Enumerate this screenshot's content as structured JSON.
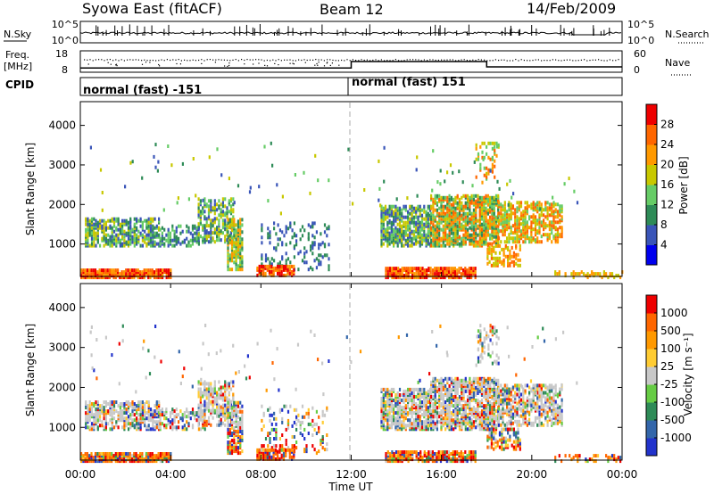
{
  "header": {
    "station": "Syowa East (fitACF)",
    "beam": "Beam 12",
    "date": "14/Feb/2009"
  },
  "nsky_panel": {
    "left_label": "N.Sky",
    "right_label": "N.Search",
    "left_ticks": [
      "10^5",
      "10^0"
    ],
    "right_ticks": [
      "10^5",
      "10^0"
    ]
  },
  "freq_panel": {
    "left_label_line1": "Freq.",
    "left_label_line2": "[MHz]",
    "right_label": "Nave",
    "left_ticks": [
      "18",
      "8"
    ],
    "right_ticks": [
      "60",
      "0"
    ]
  },
  "cpid": {
    "label": "CPID",
    "segments": [
      {
        "label": "normal (fast) -151",
        "start_hour": 0,
        "end_hour": 12
      },
      {
        "label": "normal (fast) 151",
        "start_hour": 12,
        "end_hour": 24
      }
    ]
  },
  "x_axis": {
    "label": "Time UT",
    "ticks": [
      "00:00",
      "04:00",
      "08:00",
      "12:00",
      "16:00",
      "20:00",
      "00:00"
    ]
  },
  "power_colorbar": {
    "label": "Power [dB]",
    "ticks": [
      "28",
      "24",
      "20",
      "16",
      "12",
      "8",
      "4"
    ],
    "colors": [
      "#0000ee",
      "#3a55b8",
      "#2e8b57",
      "#66cc66",
      "#c8c800",
      "#ff9900",
      "#ff6600",
      "#ee0000"
    ]
  },
  "velocity_colorbar": {
    "label": "Velocity [m s⁻¹]",
    "ticks": [
      "1000",
      "500",
      "100",
      "25",
      "-25",
      "-100",
      "-500",
      "-1000"
    ],
    "colors": [
      "#2233cc",
      "#3366aa",
      "#2e8b57",
      "#66cc44",
      "#c8c8c8",
      "#ffcc33",
      "#ff9900",
      "#ff6600",
      "#ee0000"
    ]
  },
  "chart_data": [
    {
      "type": "line",
      "title": "N.Sky / N.Search",
      "x_range_hours": [
        0,
        24
      ],
      "y_scale": "log",
      "ylim": [
        1,
        100000
      ]
    },
    {
      "type": "line",
      "title": "Freq. / Nave",
      "x_hours": [
        0,
        12,
        12,
        18,
        18,
        24
      ],
      "series": [
        {
          "name": "Freq. [MHz]",
          "values": [
            10,
            10,
            13,
            13,
            10.5,
            10.5
          ]
        }
      ],
      "ylim": [
        8,
        18
      ],
      "ylim_right": [
        0,
        60
      ]
    },
    {
      "type": "heatmap",
      "quantity": "Power",
      "units": "dB",
      "xlabel": "Time UT",
      "ylabel": "Slant Range [km]",
      "x_range_hours": [
        0,
        24
      ],
      "y_range_km": [
        180,
        4600
      ],
      "y_ticks": [
        1000,
        2000,
        3000,
        4000
      ],
      "color_ticks": [
        4,
        8,
        12,
        16,
        20,
        24,
        28
      ]
    },
    {
      "type": "heatmap",
      "quantity": "Velocity",
      "units": "m s^-1",
      "xlabel": "Time UT",
      "ylabel": "Slant Range [km]",
      "x_range_hours": [
        0,
        24
      ],
      "y_range_km": [
        180,
        4600
      ],
      "y_ticks": [
        1000,
        2000,
        3000,
        4000
      ],
      "color_ticks": [
        -1000,
        -500,
        -100,
        -25,
        25,
        100,
        500,
        1000
      ]
    }
  ]
}
